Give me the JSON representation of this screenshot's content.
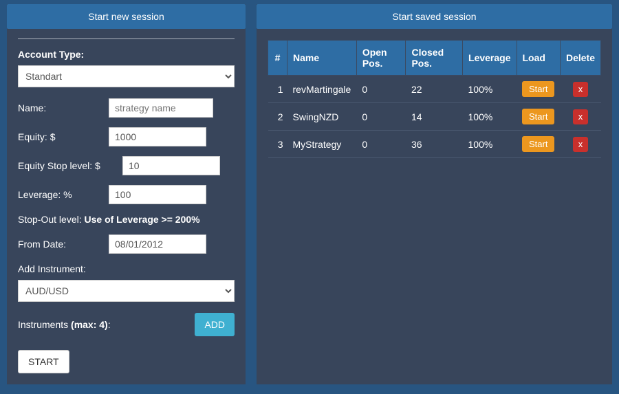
{
  "left": {
    "title": "Start new session",
    "accountTypeLabel": "Account Type:",
    "accountTypeValue": "Standart",
    "nameLabel": "Name:",
    "namePlaceholder": "strategy name",
    "equityLabel": "Equity: $",
    "equityValue": "1000",
    "equityStopLabel": "Equity Stop level: $",
    "equityStopValue": "10",
    "leverageLabel": "Leverage: %",
    "leverageValue": "100",
    "stopOutPrefix": "Stop-Out level: ",
    "stopOutBold": "Use of Leverage >= 200%",
    "fromDateLabel": "From Date:",
    "fromDateValue": "08/01/2012",
    "addInstrumentLabel": "Add Instrument:",
    "instrumentValue": "AUD/USD",
    "instrumentsPrefix": "Instruments ",
    "instrumentsBold": "(max: 4)",
    "instrumentsSuffix": ":",
    "addBtn": "ADD",
    "startBtn": "START"
  },
  "right": {
    "title": "Start saved session",
    "columns": {
      "idx": "#",
      "name": "Name",
      "open": "Open Pos.",
      "closed": "Closed Pos.",
      "lev": "Leverage",
      "load": "Load",
      "del": "Delete"
    },
    "loadBtn": "Start",
    "delBtn": "x",
    "rows": [
      {
        "idx": "1",
        "name": "revMartingale",
        "open": "0",
        "closed": "22",
        "lev": "100%"
      },
      {
        "idx": "2",
        "name": "SwingNZD",
        "open": "0",
        "closed": "14",
        "lev": "100%"
      },
      {
        "idx": "3",
        "name": "MyStrategy",
        "open": "0",
        "closed": "36",
        "lev": "100%"
      }
    ]
  }
}
